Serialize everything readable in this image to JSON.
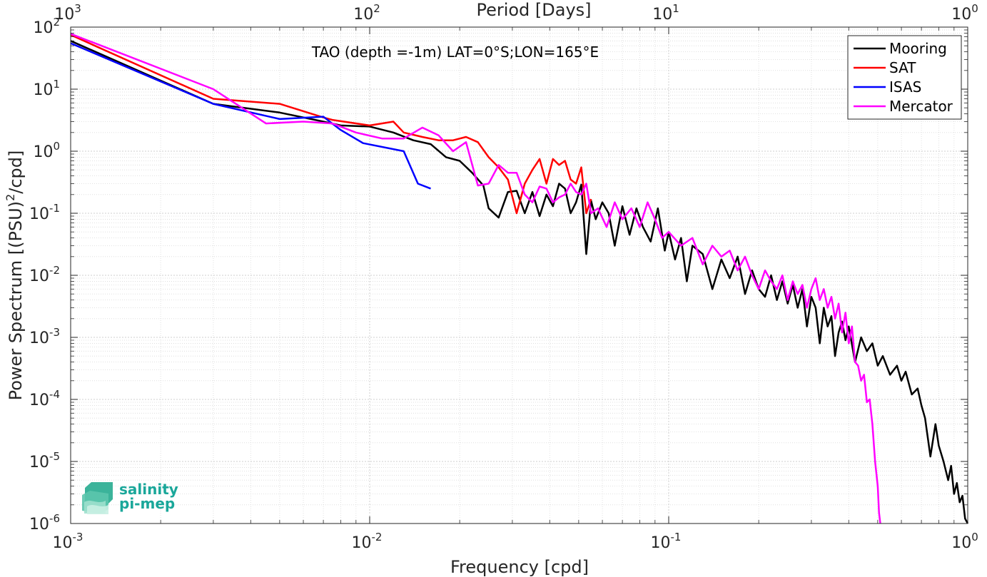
{
  "chart_data": {
    "type": "line",
    "title": "TAO (depth =-1m) LAT=0°S;LON=165°E",
    "xlabel": "Frequency [cpd]",
    "ylabel_main": "Power Spectrum [(PSU)",
    "ylabel_sup": "2",
    "ylabel_tail": "/cpd]",
    "x2label": "Period [Days]",
    "xscale": "log",
    "yscale": "log",
    "xlim": [
      0.001,
      1
    ],
    "ylim": [
      1e-06,
      100
    ],
    "grid": true,
    "legend_position": "top-right",
    "x_ticks": [
      {
        "value": 0.001,
        "base": "10",
        "exp": "-3"
      },
      {
        "value": 0.01,
        "base": "10",
        "exp": "-2"
      },
      {
        "value": 0.1,
        "base": "10",
        "exp": "-1"
      },
      {
        "value": 1,
        "base": "10",
        "exp": "0"
      }
    ],
    "x2_ticks": [
      {
        "value": 0.001,
        "base": "10",
        "exp": "3"
      },
      {
        "value": 0.01,
        "base": "10",
        "exp": "2"
      },
      {
        "value": 0.1,
        "base": "10",
        "exp": "1"
      },
      {
        "value": 1,
        "base": "10",
        "exp": "0"
      }
    ],
    "y_ticks": [
      {
        "value": 100,
        "base": "10",
        "exp": "2"
      },
      {
        "value": 10,
        "base": "10",
        "exp": "1"
      },
      {
        "value": 1,
        "base": "10",
        "exp": "0"
      },
      {
        "value": 0.1,
        "base": "10",
        "exp": "-1"
      },
      {
        "value": 0.01,
        "base": "10",
        "exp": "-2"
      },
      {
        "value": 0.001,
        "base": "10",
        "exp": "-3"
      },
      {
        "value": 0.0001,
        "base": "10",
        "exp": "-4"
      },
      {
        "value": 1e-05,
        "base": "10",
        "exp": "-5"
      },
      {
        "value": 1e-06,
        "base": "10",
        "exp": "-6"
      }
    ],
    "series": [
      {
        "name": "Mooring",
        "color": "#000000",
        "points": [
          [
            0.001,
            60
          ],
          [
            0.003,
            5.8
          ],
          [
            0.005,
            4.2
          ],
          [
            0.007,
            3.0
          ],
          [
            0.008,
            2.6
          ],
          [
            0.01,
            2.5
          ],
          [
            0.012,
            2.0
          ],
          [
            0.014,
            1.5
          ],
          [
            0.016,
            1.3
          ],
          [
            0.018,
            0.8
          ],
          [
            0.02,
            0.7
          ],
          [
            0.022,
            0.45
          ],
          [
            0.024,
            0.28
          ],
          [
            0.025,
            0.12
          ],
          [
            0.027,
            0.085
          ],
          [
            0.029,
            0.22
          ],
          [
            0.031,
            0.23
          ],
          [
            0.033,
            0.1
          ],
          [
            0.035,
            0.22
          ],
          [
            0.037,
            0.09
          ],
          [
            0.039,
            0.2
          ],
          [
            0.041,
            0.13
          ],
          [
            0.043,
            0.3
          ],
          [
            0.045,
            0.25
          ],
          [
            0.047,
            0.1
          ],
          [
            0.049,
            0.15
          ],
          [
            0.051,
            0.29
          ],
          [
            0.053,
            0.022
          ],
          [
            0.055,
            0.16
          ],
          [
            0.057,
            0.08
          ],
          [
            0.06,
            0.15
          ],
          [
            0.063,
            0.1
          ],
          [
            0.066,
            0.03
          ],
          [
            0.07,
            0.13
          ],
          [
            0.074,
            0.045
          ],
          [
            0.078,
            0.12
          ],
          [
            0.082,
            0.06
          ],
          [
            0.087,
            0.035
          ],
          [
            0.092,
            0.12
          ],
          [
            0.097,
            0.025
          ],
          [
            0.1,
            0.05
          ],
          [
            0.105,
            0.018
          ],
          [
            0.11,
            0.04
          ],
          [
            0.115,
            0.008
          ],
          [
            0.12,
            0.03
          ],
          [
            0.13,
            0.022
          ],
          [
            0.14,
            0.006
          ],
          [
            0.15,
            0.018
          ],
          [
            0.16,
            0.009
          ],
          [
            0.17,
            0.02
          ],
          [
            0.18,
            0.005
          ],
          [
            0.19,
            0.012
          ],
          [
            0.2,
            0.006
          ],
          [
            0.21,
            0.0045
          ],
          [
            0.22,
            0.01
          ],
          [
            0.23,
            0.004
          ],
          [
            0.24,
            0.008
          ],
          [
            0.25,
            0.0035
          ],
          [
            0.26,
            0.007
          ],
          [
            0.27,
            0.003
          ],
          [
            0.28,
            0.006
          ],
          [
            0.29,
            0.0015
          ],
          [
            0.3,
            0.0045
          ],
          [
            0.31,
            0.003
          ],
          [
            0.32,
            0.0008
          ],
          [
            0.33,
            0.003
          ],
          [
            0.34,
            0.0015
          ],
          [
            0.35,
            0.0022
          ],
          [
            0.36,
            0.0005
          ],
          [
            0.37,
            0.0012
          ],
          [
            0.38,
            0.0018
          ],
          [
            0.39,
            0.0009
          ],
          [
            0.4,
            0.0015
          ],
          [
            0.42,
            0.0004
          ],
          [
            0.44,
            0.001
          ],
          [
            0.46,
            0.0006
          ],
          [
            0.48,
            0.0008
          ],
          [
            0.5,
            0.00035
          ],
          [
            0.52,
            0.0005
          ],
          [
            0.55,
            0.00025
          ],
          [
            0.58,
            0.00035
          ],
          [
            0.6,
            0.0002
          ],
          [
            0.62,
            0.00028
          ],
          [
            0.65,
            0.00012
          ],
          [
            0.68,
            0.00015
          ],
          [
            0.7,
            8e-05
          ],
          [
            0.72,
            5e-05
          ],
          [
            0.75,
            1.2e-05
          ],
          [
            0.78,
            4e-05
          ],
          [
            0.8,
            1.8e-05
          ],
          [
            0.83,
            1e-05
          ],
          [
            0.86,
            5e-06
          ],
          [
            0.88,
            8.5e-06
          ],
          [
            0.9,
            3e-06
          ],
          [
            0.92,
            4.5e-06
          ],
          [
            0.94,
            2.2e-06
          ],
          [
            0.96,
            2.8e-06
          ],
          [
            0.98,
            1.2e-06
          ],
          [
            1.0,
            1e-06
          ]
        ]
      },
      {
        "name": "SAT",
        "color": "#ff0000",
        "points": [
          [
            0.001,
            75
          ],
          [
            0.003,
            7
          ],
          [
            0.005,
            5.8
          ],
          [
            0.007,
            3.5
          ],
          [
            0.0075,
            3.2
          ],
          [
            0.01,
            2.6
          ],
          [
            0.012,
            3.0
          ],
          [
            0.013,
            2.0
          ],
          [
            0.015,
            1.7
          ],
          [
            0.017,
            1.5
          ],
          [
            0.019,
            1.5
          ],
          [
            0.021,
            1.7
          ],
          [
            0.023,
            1.4
          ],
          [
            0.025,
            0.8
          ],
          [
            0.027,
            0.55
          ],
          [
            0.029,
            0.35
          ],
          [
            0.031,
            0.1
          ],
          [
            0.033,
            0.3
          ],
          [
            0.035,
            0.5
          ],
          [
            0.037,
            0.75
          ],
          [
            0.039,
            0.3
          ],
          [
            0.041,
            0.75
          ],
          [
            0.043,
            0.6
          ],
          [
            0.045,
            0.7
          ],
          [
            0.047,
            0.35
          ],
          [
            0.049,
            0.3
          ],
          [
            0.051,
            0.55
          ],
          [
            0.053,
            0.1
          ],
          [
            0.055,
            0.17
          ]
        ]
      },
      {
        "name": "ISAS",
        "color": "#0000ff",
        "points": [
          [
            0.001,
            55
          ],
          [
            0.003,
            5.8
          ],
          [
            0.005,
            3.3
          ],
          [
            0.007,
            3.6
          ],
          [
            0.008,
            2.2
          ],
          [
            0.0095,
            1.35
          ],
          [
            0.013,
            1.0
          ],
          [
            0.0145,
            0.3
          ],
          [
            0.016,
            0.25
          ]
        ]
      },
      {
        "name": "Mercator",
        "color": "#ff00ff",
        "points": [
          [
            0.001,
            78
          ],
          [
            0.003,
            10
          ],
          [
            0.0045,
            2.8
          ],
          [
            0.006,
            3.0
          ],
          [
            0.0075,
            2.8
          ],
          [
            0.009,
            2.0
          ],
          [
            0.011,
            1.6
          ],
          [
            0.013,
            1.6
          ],
          [
            0.015,
            2.4
          ],
          [
            0.017,
            1.8
          ],
          [
            0.019,
            1.0
          ],
          [
            0.021,
            1.4
          ],
          [
            0.023,
            0.28
          ],
          [
            0.025,
            0.3
          ],
          [
            0.027,
            0.6
          ],
          [
            0.029,
            0.45
          ],
          [
            0.031,
            0.45
          ],
          [
            0.033,
            0.2
          ],
          [
            0.035,
            0.15
          ],
          [
            0.037,
            0.27
          ],
          [
            0.039,
            0.25
          ],
          [
            0.041,
            0.15
          ],
          [
            0.043,
            0.18
          ],
          [
            0.045,
            0.2
          ],
          [
            0.047,
            0.3
          ],
          [
            0.049,
            0.22
          ],
          [
            0.051,
            0.2
          ],
          [
            0.053,
            0.3
          ],
          [
            0.055,
            0.1
          ],
          [
            0.058,
            0.12
          ],
          [
            0.062,
            0.06
          ],
          [
            0.066,
            0.15
          ],
          [
            0.07,
            0.08
          ],
          [
            0.075,
            0.12
          ],
          [
            0.08,
            0.06
          ],
          [
            0.085,
            0.15
          ],
          [
            0.09,
            0.08
          ],
          [
            0.095,
            0.04
          ],
          [
            0.1,
            0.05
          ],
          [
            0.11,
            0.03
          ],
          [
            0.12,
            0.04
          ],
          [
            0.13,
            0.015
          ],
          [
            0.14,
            0.03
          ],
          [
            0.15,
            0.02
          ],
          [
            0.16,
            0.025
          ],
          [
            0.17,
            0.012
          ],
          [
            0.18,
            0.02
          ],
          [
            0.19,
            0.01
          ],
          [
            0.2,
            0.006
          ],
          [
            0.21,
            0.012
          ],
          [
            0.22,
            0.008
          ],
          [
            0.23,
            0.006
          ],
          [
            0.24,
            0.01
          ],
          [
            0.25,
            0.004
          ],
          [
            0.26,
            0.008
          ],
          [
            0.27,
            0.005
          ],
          [
            0.28,
            0.007
          ],
          [
            0.29,
            0.003
          ],
          [
            0.3,
            0.006
          ],
          [
            0.31,
            0.009
          ],
          [
            0.32,
            0.004
          ],
          [
            0.33,
            0.006
          ],
          [
            0.34,
            0.003
          ],
          [
            0.35,
            0.0045
          ],
          [
            0.36,
            0.002
          ],
          [
            0.37,
            0.0035
          ],
          [
            0.38,
            0.0012
          ],
          [
            0.39,
            0.0025
          ],
          [
            0.4,
            0.0008
          ],
          [
            0.41,
            0.0015
          ],
          [
            0.42,
            0.0004
          ],
          [
            0.43,
            0.00035
          ],
          [
            0.44,
            0.0002
          ],
          [
            0.45,
            0.00025
          ],
          [
            0.46,
            9e-05
          ],
          [
            0.47,
            0.0001
          ],
          [
            0.48,
            4e-05
          ],
          [
            0.49,
            1e-05
          ],
          [
            0.5,
            4e-06
          ],
          [
            0.505,
            1.5e-06
          ],
          [
            0.51,
            1e-06
          ]
        ]
      }
    ]
  },
  "logo": {
    "line1": "salinity",
    "line2": "pi-mep"
  }
}
